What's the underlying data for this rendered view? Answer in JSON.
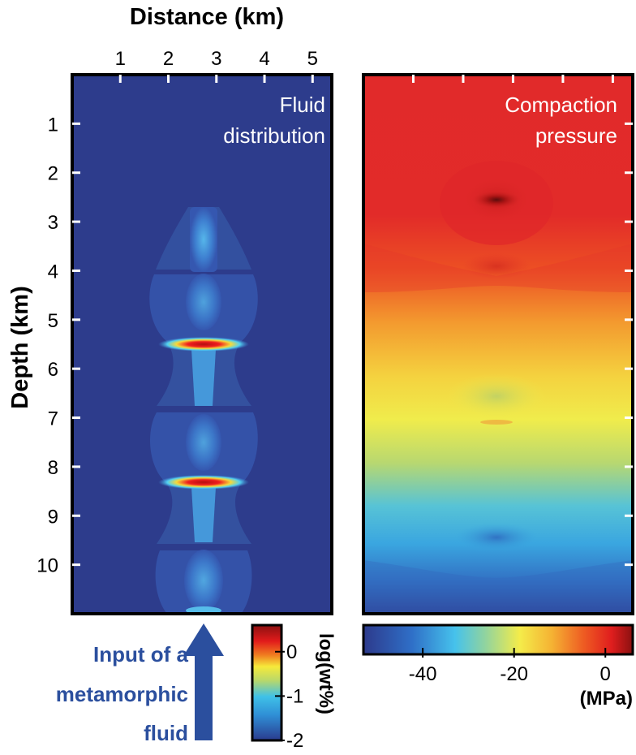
{
  "chart_data": [
    {
      "type": "heatmap",
      "panel_label": [
        "Fluid",
        "distribution"
      ],
      "xlabel": "Distance (km)",
      "ylabel": "Depth (km)",
      "x_ticks": [
        1,
        2,
        3,
        4,
        5
      ],
      "y_ticks": [
        1,
        2,
        3,
        4,
        5,
        6,
        7,
        8,
        9,
        10
      ],
      "xlim": [
        0,
        5.4
      ],
      "ylim": [
        0,
        11
      ],
      "colorbar": {
        "label": "log(wt%)",
        "ticks": [
          0,
          -1,
          -2
        ],
        "range": [
          -2,
          0.6
        ],
        "orientation": "vertical"
      },
      "features": [
        {
          "type": "fluid-column",
          "x_center": 2.7,
          "depth_top": 2.6,
          "depth_bottom": 11.0
        },
        {
          "type": "high-fluid-band",
          "x_center": 2.7,
          "depth": 5.45,
          "value": 0.5
        },
        {
          "type": "high-fluid-band",
          "x_center": 2.7,
          "depth": 8.25,
          "value": 0.5
        }
      ]
    },
    {
      "type": "heatmap",
      "panel_label": [
        "Compaction",
        "pressure"
      ],
      "colorbar": {
        "label": "(MPa)",
        "ticks": [
          -40,
          -20,
          0
        ],
        "range": [
          -53,
          6
        ],
        "orientation": "horizontal"
      },
      "features": [
        {
          "type": "pressure-minimum",
          "x_center": 2.7,
          "depth": 2.6
        },
        {
          "type": "gradient",
          "depth_top": 4.0,
          "depth_bottom": 11.0,
          "from_value": 0,
          "to_value": -50
        }
      ]
    }
  ],
  "annotation": {
    "lines": [
      "Input of a",
      "metamorphic",
      "fluid"
    ],
    "color": "#2b4f9e"
  },
  "colors": {
    "fluid_background": "#2d3c8c",
    "fluid_column": "#3f73c6",
    "fluid_peak": "#e01a1a",
    "pressure_top": "#e12a2a",
    "pressure_mid": "#f4ec4a",
    "pressure_bottom": "#2f3f93"
  }
}
